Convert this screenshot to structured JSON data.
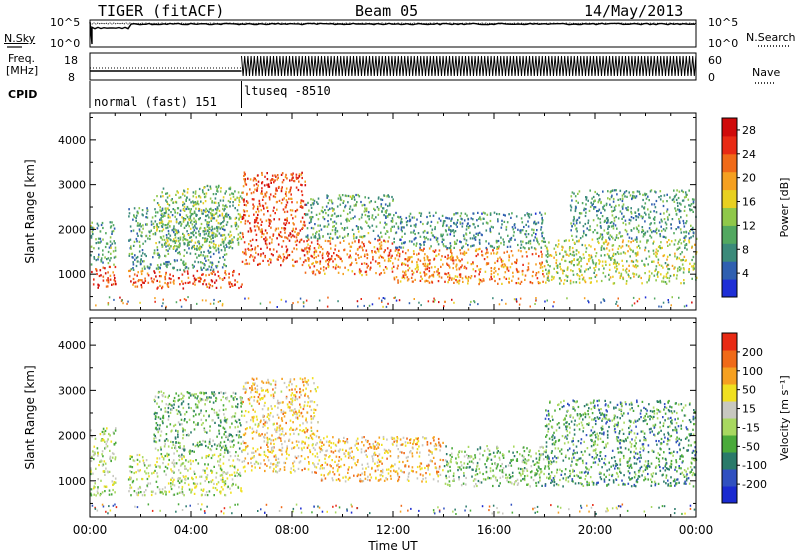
{
  "header": {
    "station": "TIGER (fitACF)",
    "beam": "Beam 05",
    "date": "14/May/2013"
  },
  "panels": {
    "nsky": {
      "left_label": "N.Sky",
      "left_ticks": [
        "10^5",
        "10^0"
      ],
      "right_ticks": [
        "10^5",
        "10^0"
      ],
      "right_label": "N.Search"
    },
    "freq": {
      "left_label_1": "Freq.",
      "left_label_2": "[MHz]",
      "left_ticks": [
        "18",
        "8"
      ],
      "right_ticks": [
        "60",
        "0"
      ],
      "right_label": "Nave"
    },
    "cpid": {
      "label": "CPID",
      "segments": [
        "normal (fast) 151",
        "ltuseq -8510"
      ]
    }
  },
  "chart_data": [
    {
      "type": "heatmap",
      "title": "",
      "xlabel": "",
      "ylabel": "Slant Range [km]",
      "x_ticks": [
        "00:00",
        "04:00",
        "08:00",
        "12:00",
        "16:00",
        "20:00",
        "00:00"
      ],
      "y_ticks": [
        1000,
        2000,
        3000,
        4000
      ],
      "ylim": [
        200,
        4600
      ],
      "colorbar": {
        "label": "Power [dB]",
        "ticks": [
          4,
          8,
          12,
          16,
          20,
          24,
          28
        ],
        "range": [
          0,
          30
        ],
        "colors": [
          "#1f2fd6",
          "#2f5fb0",
          "#3b8a7a",
          "#52a860",
          "#8fc84a",
          "#e8d020",
          "#f5a020",
          "#f06a18",
          "#e82a14",
          "#d00a0a"
        ]
      },
      "regions": [
        {
          "t": [
            0.0,
            1.0
          ],
          "r": [
            700,
            1200
          ],
          "v": 25
        },
        {
          "t": [
            0.0,
            1.0
          ],
          "r": [
            1200,
            2200
          ],
          "v": 10
        },
        {
          "t": [
            1.5,
            6.0
          ],
          "r": [
            700,
            1100
          ],
          "v": 24
        },
        {
          "t": [
            1.5,
            5.5
          ],
          "r": [
            1100,
            2500
          ],
          "v": 9
        },
        {
          "t": [
            2.5,
            6.0
          ],
          "r": [
            1600,
            3000
          ],
          "v": 12
        },
        {
          "t": [
            6.0,
            8.5
          ],
          "r": [
            1200,
            3300
          ],
          "v": 24
        },
        {
          "t": [
            8.5,
            12.0
          ],
          "r": [
            1000,
            1800
          ],
          "v": 22
        },
        {
          "t": [
            8.5,
            12.0
          ],
          "r": [
            1800,
            2800
          ],
          "v": 10
        },
        {
          "t": [
            12.0,
            18.0
          ],
          "r": [
            800,
            1600
          ],
          "v": 21
        },
        {
          "t": [
            12.0,
            18.0
          ],
          "r": [
            1600,
            2400
          ],
          "v": 8
        },
        {
          "t": [
            18.0,
            24.0
          ],
          "r": [
            800,
            1800
          ],
          "v": 14
        },
        {
          "t": [
            19.0,
            24.0
          ],
          "r": [
            1800,
            2900
          ],
          "v": 9
        }
      ]
    },
    {
      "type": "heatmap",
      "title": "",
      "xlabel": "Time UT",
      "ylabel": "Slant Range [km]",
      "x_ticks": [
        "00:00",
        "04:00",
        "08:00",
        "12:00",
        "16:00",
        "20:00",
        "00:00"
      ],
      "y_ticks": [
        1000,
        2000,
        3000,
        4000
      ],
      "ylim": [
        200,
        4600
      ],
      "colorbar": {
        "label": "Velocity [m s⁻¹]",
        "ticks": [
          200,
          100,
          50,
          15,
          -15,
          -50,
          -100,
          -200
        ],
        "range": [
          -250,
          250
        ],
        "colors": [
          "#1a2ad0",
          "#3050c0",
          "#2a7a6a",
          "#4aaa3a",
          "#a8d860",
          "#c8c8c0",
          "#f0e020",
          "#f5a020",
          "#f06a18",
          "#e82a14"
        ]
      },
      "regions": [
        {
          "t": [
            0.0,
            1.0
          ],
          "r": [
            700,
            2200
          ],
          "v": 0
        },
        {
          "t": [
            1.5,
            6.0
          ],
          "r": [
            700,
            1600
          ],
          "v": 0
        },
        {
          "t": [
            2.5,
            6.0
          ],
          "r": [
            1600,
            3000
          ],
          "v": -60
        },
        {
          "t": [
            6.0,
            9.0
          ],
          "r": [
            1200,
            3300
          ],
          "v": 80
        },
        {
          "t": [
            9.0,
            14.0
          ],
          "r": [
            1000,
            2000
          ],
          "v": 90
        },
        {
          "t": [
            14.0,
            18.0
          ],
          "r": [
            900,
            1800
          ],
          "v": -40
        },
        {
          "t": [
            18.0,
            24.0
          ],
          "r": [
            900,
            2800
          ],
          "v": -90
        }
      ]
    }
  ]
}
